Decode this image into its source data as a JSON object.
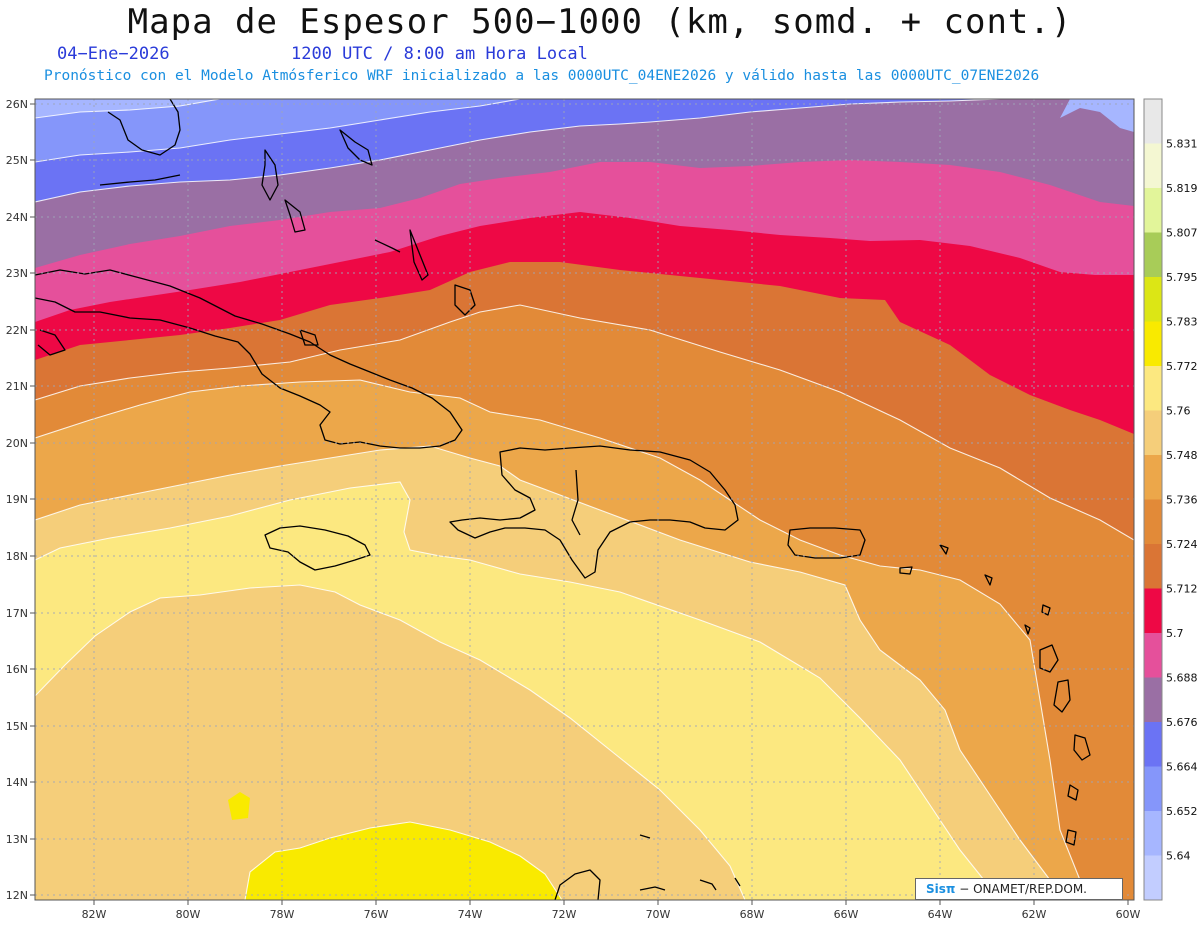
{
  "title": "Mapa de Espesor 500−1000 (km, somd. + cont.)",
  "date": "04−Ene−2026",
  "time": "1200 UTC / 8:00 am Hora Local",
  "forecast": "Pronóstico con el Modelo Atmósferico WRF inicializado a las 0000UTC_04ENE2026 y válido hasta las  0000UTC_07ENE2026",
  "credit": {
    "logo": "Sisπ",
    "text": "− ONAMET/REP.DOM."
  },
  "lon_ticks": [
    "82W",
    "80W",
    "78W",
    "76W",
    "74W",
    "72W",
    "70W",
    "68W",
    "66W",
    "64W",
    "62W",
    "60W"
  ],
  "lat_ticks": [
    "26N",
    "25N",
    "24N",
    "23N",
    "22N",
    "21N",
    "20N",
    "19N",
    "18N",
    "17N",
    "16N",
    "15N",
    "14N",
    "13N",
    "12N"
  ],
  "colorbar": {
    "labels": [
      "5.831",
      "5.819",
      "5.807",
      "5.795",
      "5.783",
      "5.772",
      "5.76",
      "5.748",
      "5.736",
      "5.724",
      "5.712",
      "5.7",
      "5.688",
      "5.676",
      "5.664",
      "5.652",
      "5.64"
    ],
    "colors": [
      "#e8e8e8",
      "#f4f7d2",
      "#e2f59a",
      "#a8cc58",
      "#dce615",
      "#f9ea00",
      "#fce880",
      "#f5ce7a",
      "#eca74a",
      "#e28a38",
      "#da7535",
      "#ee0845",
      "#e5509b",
      "#9a6fa4",
      "#6b73f4",
      "#8596fa",
      "#a6b6ff",
      "#c2cdff"
    ]
  }
}
